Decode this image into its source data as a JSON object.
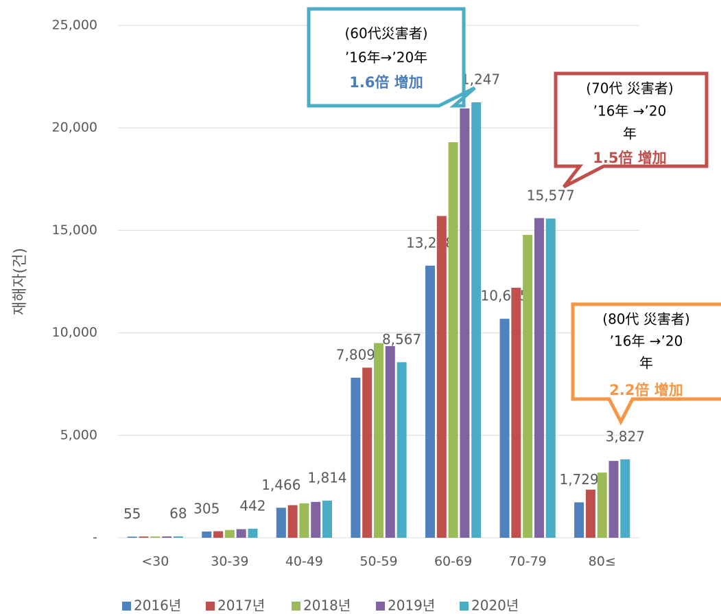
{
  "chart_data": {
    "type": "bar",
    "y_label": "재해자(건)",
    "categories": [
      "<30",
      "30-39",
      "40-49",
      "50-59",
      "60-69",
      "70-79",
      "80≤"
    ],
    "series": [
      {
        "name": "2016년",
        "color": "#4f81bd",
        "values": [
          55,
          305,
          1466,
          7809,
          13278,
          10685,
          1729
        ],
        "value_labels": [
          "55",
          "305",
          "1,466",
          "7,809",
          "13,278",
          "10,685",
          "1,729"
        ]
      },
      {
        "name": "2017년",
        "color": "#c0504d",
        "values": [
          60,
          320,
          1590,
          8300,
          15700,
          12200,
          2350
        ]
      },
      {
        "name": "2018년",
        "color": "#9bbb59",
        "values": [
          62,
          380,
          1680,
          9500,
          19300,
          14780,
          3180
        ]
      },
      {
        "name": "2019년",
        "color": "#8064a2",
        "values": [
          65,
          420,
          1750,
          9350,
          20950,
          15600,
          3750
        ]
      },
      {
        "name": "2020년",
        "color": "#4bacc6",
        "values": [
          68,
          442,
          1814,
          8567,
          21247,
          15577,
          3827
        ],
        "value_labels": [
          "68",
          "442",
          "1,814",
          "8,567",
          "21,247",
          "15,577",
          "3,827"
        ]
      }
    ],
    "ylim": [
      0,
      25000
    ],
    "yticks": [
      {
        "value": 0,
        "label": "-"
      },
      {
        "value": 5000,
        "label": "5,000"
      },
      {
        "value": 10000,
        "label": "10,000"
      },
      {
        "value": 15000,
        "label": "15,000"
      },
      {
        "value": 20000,
        "label": "20,000"
      },
      {
        "value": 25000,
        "label": "25,000"
      }
    ],
    "grid": true,
    "legend": "bottom",
    "annotations": [
      {
        "lines": [
          "(60代災害者)",
          "’16年→’20年"
        ],
        "highlight": "1.6倍 增加",
        "color": "#4bacc6",
        "highlight_color": "#4a7ebb"
      },
      {
        "lines": [
          "(70代 災害者)",
          "’16年 →’20",
          "年"
        ],
        "highlight": "1.5倍 增加",
        "color": "#c0504d",
        "highlight_color": "#c0504d"
      },
      {
        "lines": [
          "(80代 災害者)",
          "’16年 →’20",
          "年"
        ],
        "highlight": "2.2倍  增加",
        "color": "#f79646",
        "highlight_color": "#f79646"
      }
    ]
  }
}
